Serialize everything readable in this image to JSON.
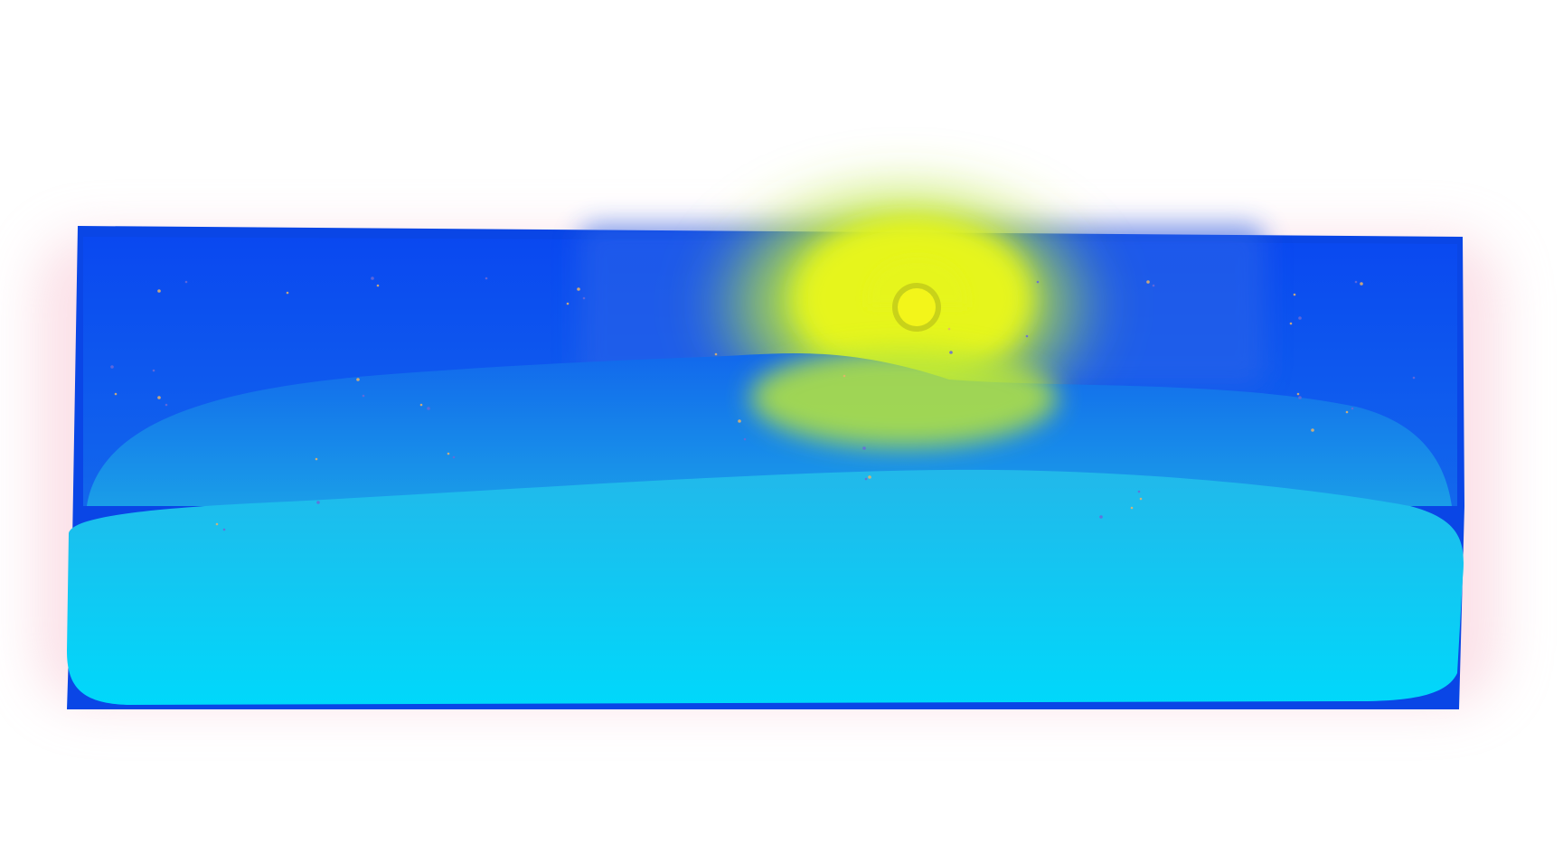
{
  "scene": {
    "description_kind": "digital painting",
    "colors": {
      "background": "#ffffff",
      "pink_halo": "#f8c9d6",
      "frame_blue": "#0a46e6",
      "sky_top": "#0a48f0",
      "sky_mid": "#1268ec",
      "hill_light": "#1a9ee8",
      "sea_top": "#22b8ea",
      "sea_bottom": "#00d8fb",
      "sun_core": "#f3f51a",
      "sun_ring": "#c8d21a",
      "glow_yellow": "#e6f51e",
      "glow_green": "#b8e63a",
      "star_warm": "#e8b46a",
      "star_cool": "#6a6ad8"
    },
    "elements": [
      "pink-halo",
      "frame",
      "sky",
      "sun-glow",
      "hill-back",
      "sea-band",
      "sun",
      "stars"
    ]
  }
}
